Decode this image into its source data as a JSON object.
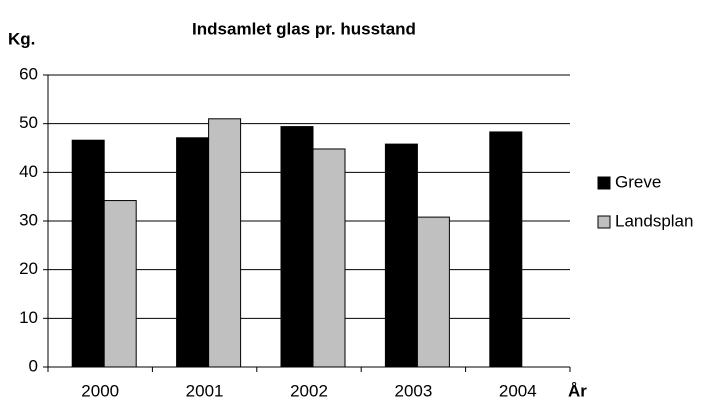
{
  "chart_data": {
    "type": "bar",
    "title": "Indsamlet glas pr. husstand",
    "y_label": "Kg.",
    "x_label": "År",
    "categories": [
      "2000",
      "2001",
      "2002",
      "2003",
      "2004"
    ],
    "series": [
      {
        "name": "Greve",
        "color": "#000000",
        "values": [
          46.6,
          47.1,
          49.4,
          45.8,
          48.3
        ]
      },
      {
        "name": "Landsplan",
        "color": "#c0c0c0",
        "values": [
          34.2,
          51.0,
          44.8,
          30.8,
          null
        ]
      }
    ],
    "ylim": [
      0,
      60
    ],
    "yticks": [
      0,
      10,
      20,
      30,
      40,
      50,
      60
    ],
    "grid": true,
    "legend": "right"
  }
}
